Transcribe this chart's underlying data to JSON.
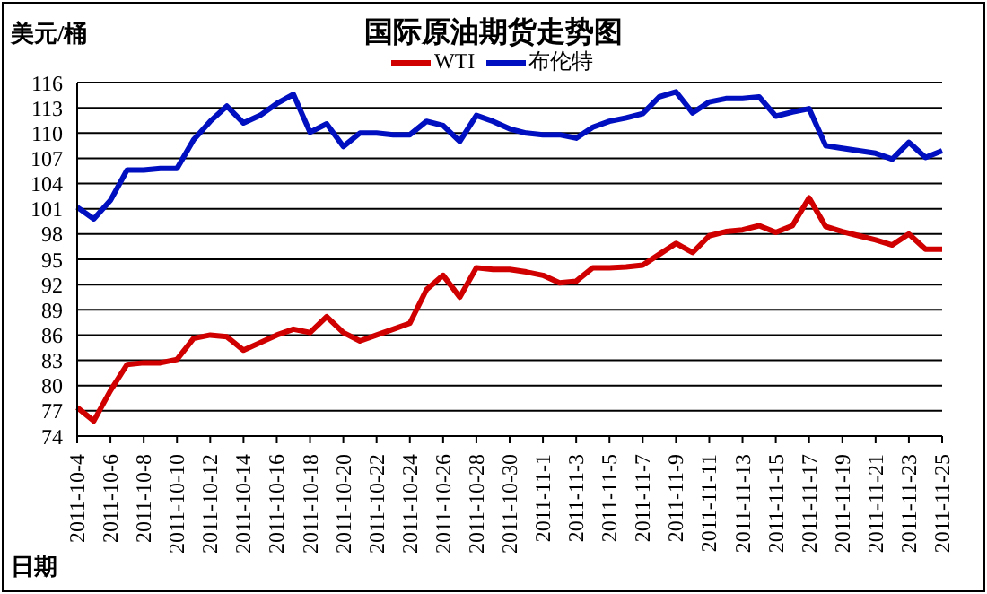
{
  "chart_data": {
    "type": "line",
    "title": "国际原油期货走势图",
    "ylabel": "美元/桶",
    "xlabel": "日期",
    "categories": [
      "2011-10-4",
      null,
      "2011-10-6",
      null,
      "2011-10-8",
      null,
      "2011-10-10",
      null,
      "2011-10-12",
      null,
      "2011-10-14",
      null,
      "2011-10-16",
      null,
      "2011-10-18",
      null,
      "2011-10-20",
      null,
      "2011-10-22",
      null,
      "2011-10-24",
      null,
      "2011-10-26",
      null,
      "2011-10-28",
      null,
      "2011-10-30",
      null,
      "2011-11-1",
      null,
      "2011-11-3",
      null,
      "2011-11-5",
      null,
      "2011-11-7",
      null,
      "2011-11-9",
      null,
      "2011-11-11",
      null,
      "2011-11-13",
      null,
      "2011-11-15",
      null,
      "2011-11-17",
      null,
      "2011-11-19",
      null,
      "2011-11-21",
      null,
      "2011-11-23",
      null,
      "2011-11-25"
    ],
    "series": [
      {
        "name": "WTI",
        "color": "#d00000",
        "values": [
          77.4,
          75.8,
          79.4,
          82.5,
          82.7,
          82.7,
          83.1,
          85.6,
          86,
          85.8,
          84.2,
          85.1,
          86,
          86.7,
          86.3,
          88.2,
          86.3,
          85.3,
          86,
          86.7,
          87.4,
          91.4,
          93.1,
          90.5,
          94,
          93.8,
          93.8,
          93.5,
          93.1,
          92.2,
          92.4,
          94,
          94,
          94.1,
          94.3,
          95.6,
          96.9,
          95.8,
          97.8,
          98.3,
          98.5,
          99,
          98.2,
          99,
          102.3,
          98.9,
          98.3,
          97.8,
          97.3,
          96.7,
          98,
          96.2,
          96.2
        ]
      },
      {
        "name": "布伦特",
        "color": "#0010c0",
        "values": [
          101.2,
          99.8,
          102,
          105.6,
          105.6,
          105.8,
          105.8,
          109.2,
          111.4,
          113.2,
          111.2,
          112.1,
          113.5,
          114.6,
          110.1,
          111.1,
          108.4,
          110,
          110,
          109.8,
          109.8,
          111.4,
          110.9,
          109,
          112.1,
          111.4,
          110.5,
          110,
          109.8,
          109.8,
          109.4,
          110.7,
          111.4,
          111.8,
          112.3,
          114.3,
          114.9,
          112.4,
          113.7,
          114.1,
          114.1,
          114.3,
          112,
          112.5,
          112.9,
          108.5,
          108.2,
          107.9,
          107.6,
          106.9,
          108.9,
          107.1,
          107.9
        ]
      }
    ],
    "ylim": [
      74,
      116
    ],
    "yticks": [
      74,
      77,
      80,
      83,
      86,
      89,
      92,
      95,
      98,
      101,
      104,
      107,
      110,
      113,
      116
    ],
    "grid": "y",
    "legend": "top right",
    "marker": "none",
    "line_style": "solid"
  }
}
